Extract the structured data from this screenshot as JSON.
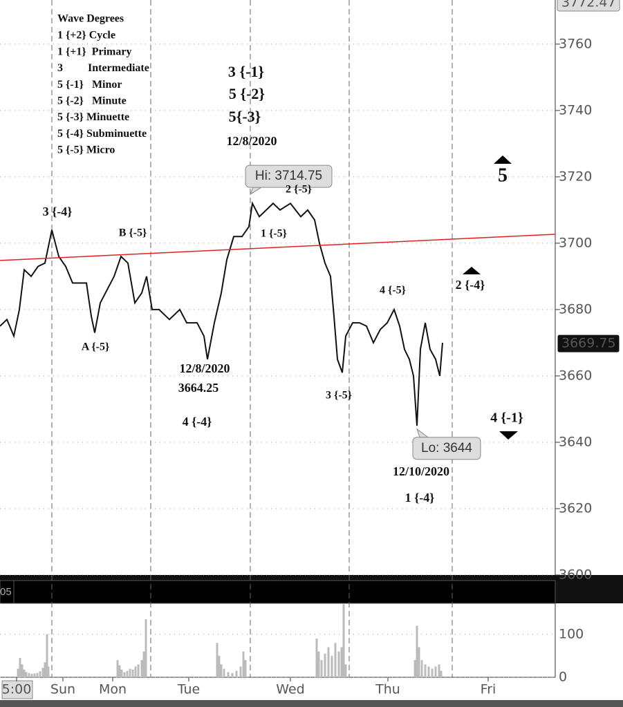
{
  "chart_data": {
    "type": "line",
    "ylim": [
      3600,
      3773.3
    ],
    "yticks": [
      3600,
      3620,
      3640,
      3660,
      3680,
      3700,
      3720,
      3740,
      3760
    ],
    "xlim": [
      0,
      803
    ],
    "xticks": [
      {
        "value": 24,
        "label": "5:00"
      },
      {
        "value": 91,
        "label": "Sun"
      },
      {
        "value": 163,
        "label": "Mon"
      },
      {
        "value": 273,
        "label": "Tue"
      },
      {
        "value": 420,
        "label": "Wed"
      },
      {
        "value": 561,
        "label": "Thu"
      },
      {
        "value": 706,
        "label": "Fri"
      }
    ],
    "grid": true,
    "series": [
      {
        "color": "#111111",
        "x": [
          0,
          10,
          20,
          28,
          35,
          45,
          55,
          65,
          75,
          85,
          95,
          105,
          115,
          125,
          132,
          137,
          145,
          155,
          165,
          175,
          185,
          195,
          205,
          212,
          220,
          230,
          245,
          260,
          270,
          285,
          295,
          300,
          310,
          320,
          328,
          338,
          350,
          360,
          365,
          375,
          385,
          395,
          405,
          420,
          435,
          445,
          455,
          462,
          470,
          478,
          483,
          488,
          495,
          500,
          510,
          520,
          530,
          540,
          550,
          560,
          570,
          578,
          585,
          592,
          598,
          603,
          608,
          615,
          622,
          630,
          636,
          640
        ],
        "values": [
          3675,
          3677,
          3672,
          3680,
          3692,
          3690,
          3693,
          3694,
          3704,
          3696,
          3693,
          3688,
          3688,
          3688,
          3678,
          3673,
          3682,
          3686,
          3690,
          3696,
          3694,
          3682,
          3685,
          3690,
          3680,
          3680,
          3677,
          3680,
          3676,
          3676,
          3672,
          3665,
          3676,
          3685,
          3695,
          3702,
          3702,
          3705,
          3712,
          3708,
          3710,
          3712,
          3710,
          3712,
          3708,
          3710,
          3707,
          3700,
          3694,
          3690,
          3678,
          3665,
          3661,
          3672,
          3676,
          3676,
          3675,
          3670,
          3674,
          3676,
          3680,
          3675,
          3668,
          3665,
          3660,
          3645,
          3668,
          3676,
          3668,
          3665,
          3660,
          3670
        ]
      }
    ],
    "trend_line": {
      "color": "#e02020",
      "x": [
        0,
        803
      ],
      "values": [
        3694.8,
        3702.7
      ]
    },
    "high_marker": 3772.47,
    "last_price": 3669.75,
    "callouts": [
      {
        "label": "Hi: 3714.75",
        "value": 3714.75
      },
      {
        "label": "Lo: 3644",
        "value": 3644
      }
    ],
    "legend_title": "Wave Degrees",
    "legend_items": [
      "1 {+2} Cycle",
      "1 {+1}  Primary",
      "3         Intermediate",
      "5 {-1}   Minor",
      "5 {-2}   Minute",
      "5 {-3} Minuette",
      "5 {-4} Subminuette",
      "5 {-5} Micro"
    ],
    "annotations": [
      "3 {-4}",
      "B {-5}",
      "A {-5}",
      "12/8/2020",
      "3664.25",
      "4 {-4}",
      "3 {-1}",
      "5 {-2}",
      "5{-3}",
      "12/8/2020",
      "2 {-5}",
      "1 {-5}",
      "4 {-5}",
      "3 {-5}",
      "12/10/2020",
      "1 {-4}",
      "5",
      "2 {-4}",
      "4 {-1}"
    ],
    "volume": {
      "label": "05",
      "color": "#bbbbbb",
      "ylim": [
        0,
        172
      ],
      "yticks": [
        0,
        100
      ],
      "x": [
        26,
        29,
        32,
        35,
        38,
        42,
        46,
        50,
        54,
        58,
        62,
        65,
        68,
        70,
        170,
        173,
        176,
        180,
        184,
        188,
        192,
        196,
        200,
        205,
        208,
        211,
        314,
        317,
        320,
        324,
        330,
        336,
        342,
        348,
        352,
        355,
        458,
        461,
        465,
        470,
        475,
        480,
        485,
        490,
        494,
        497,
        500,
        600,
        603,
        606,
        610,
        615,
        620,
        625,
        630,
        635,
        638
      ],
      "values": [
        20,
        45,
        30,
        18,
        12,
        10,
        8,
        9,
        10,
        14,
        22,
        35,
        100,
        25,
        40,
        28,
        18,
        12,
        15,
        20,
        18,
        25,
        30,
        40,
        60,
        135,
        80,
        50,
        30,
        20,
        12,
        10,
        15,
        25,
        60,
        40,
        90,
        60,
        40,
        55,
        70,
        50,
        80,
        60,
        70,
        170,
        30,
        40,
        120,
        70,
        40,
        30,
        25,
        20,
        25,
        30,
        15
      ]
    }
  }
}
